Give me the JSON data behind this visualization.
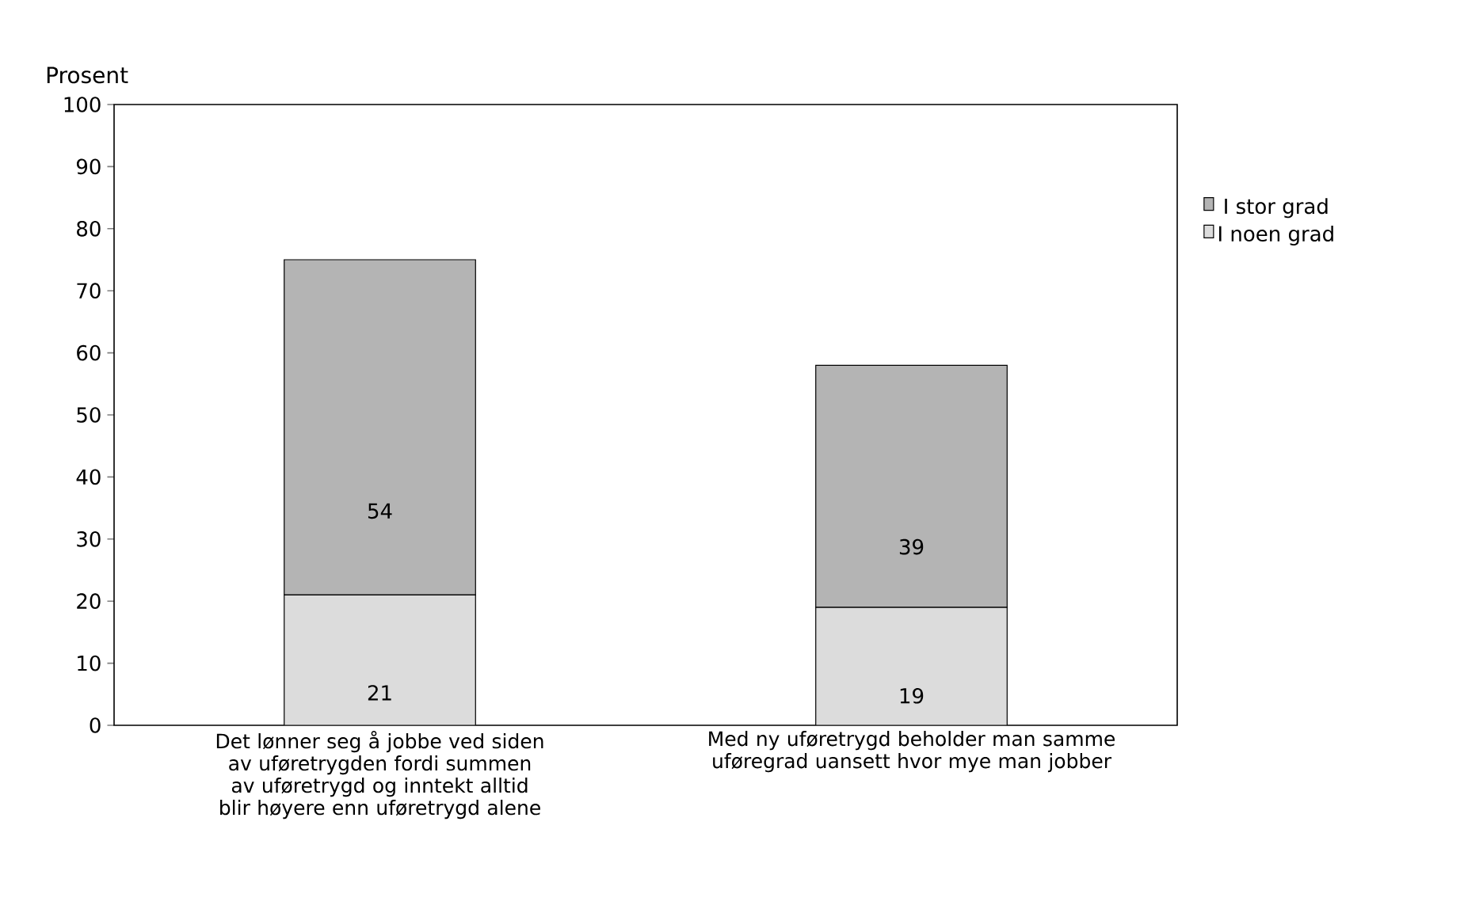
{
  "chart_data": {
    "type": "bar",
    "stacked": true,
    "ylabel": "Prosent",
    "categories": [
      "Det lønner seg å jobbe ved siden av uføretrygden fordi summen av uføretrygd og inntekt alltid blir høyere enn uføretrygd alene",
      "Med ny uføretrygd beholder man samme uføregrad uansett hvor mye man jobber"
    ],
    "series": [
      {
        "name": "I noen grad",
        "color": "#dcdcdc",
        "values": [
          21,
          19
        ]
      },
      {
        "name": "I stor grad",
        "color": "#b4b4b4",
        "values": [
          54,
          39
        ]
      }
    ],
    "ylim": [
      0,
      100
    ],
    "yticks": [
      0,
      10,
      20,
      30,
      40,
      50,
      60,
      70,
      80,
      90,
      100
    ],
    "data_labels": true,
    "legend": "right",
    "grid": false
  }
}
